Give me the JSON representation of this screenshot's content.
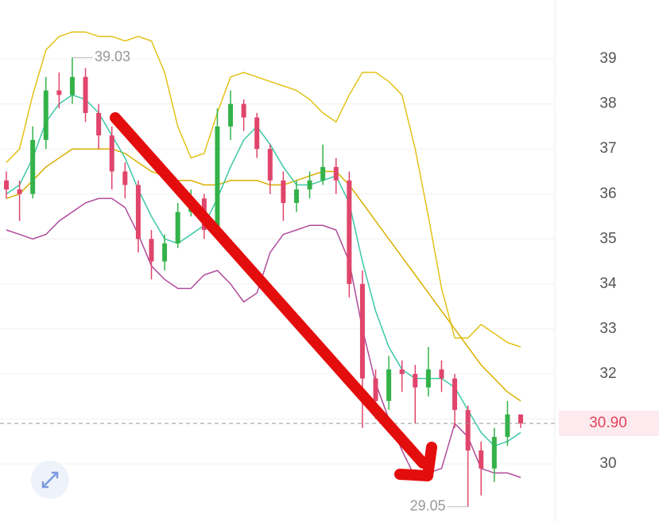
{
  "chart_data": {
    "type": "candlestick",
    "ylim": [
      28.71,
      40.31
    ],
    "yticks": [
      30,
      31,
      32,
      33,
      34,
      35,
      36,
      37,
      38,
      39
    ],
    "grid": true,
    "up_color": "#34b24a",
    "down_color": "#e0456b",
    "candles": {
      "open": [
        36.3,
        36.1,
        36.0,
        37.2,
        38.3,
        38.2,
        38.6,
        37.8,
        37.3,
        36.5,
        36.2,
        35.0,
        34.5,
        34.9,
        35.6,
        35.9,
        35.2,
        37.5,
        38.0,
        37.7,
        37.0,
        36.3,
        35.8,
        36.1,
        36.3,
        36.6,
        36.3,
        34.0,
        31.9,
        31.4,
        32.1,
        32.0,
        31.7,
        32.1,
        31.9,
        31.2,
        30.3,
        29.9,
        30.6,
        31.1
      ],
      "high": [
        36.5,
        36.3,
        37.5,
        38.6,
        38.7,
        39.03,
        38.8,
        38.0,
        37.5,
        36.7,
        36.3,
        35.2,
        35.1,
        35.8,
        36.1,
        36.0,
        37.9,
        38.3,
        38.1,
        37.8,
        37.1,
        36.5,
        36.3,
        36.5,
        37.1,
        36.8,
        36.5,
        34.3,
        32.1,
        32.4,
        32.3,
        32.2,
        32.6,
        32.3,
        32.0,
        31.3,
        30.5,
        30.8,
        31.4,
        31.1
      ],
      "low": [
        35.9,
        35.4,
        35.9,
        37.0,
        37.9,
        38.0,
        37.6,
        37.0,
        36.1,
        35.9,
        34.7,
        34.1,
        34.3,
        34.8,
        35.5,
        35.0,
        35.1,
        37.2,
        37.4,
        36.8,
        36.0,
        35.4,
        35.6,
        35.9,
        36.2,
        36.0,
        33.7,
        30.8,
        31.0,
        31.2,
        31.6,
        30.9,
        31.5,
        31.6,
        30.8,
        29.05,
        29.3,
        29.6,
        30.4,
        30.8
      ],
      "close": [
        36.1,
        36.0,
        37.2,
        38.3,
        38.2,
        38.6,
        37.8,
        37.3,
        36.5,
        36.2,
        35.0,
        34.5,
        34.9,
        35.6,
        35.9,
        35.2,
        37.5,
        38.0,
        37.7,
        37.0,
        36.3,
        35.8,
        36.1,
        36.3,
        36.6,
        36.3,
        34.0,
        31.9,
        31.4,
        32.1,
        32.0,
        31.7,
        32.1,
        31.9,
        31.2,
        30.3,
        29.9,
        30.6,
        31.1,
        30.9
      ]
    },
    "lines": [
      {
        "color": "#e3c21a",
        "values": [
          36.7,
          37.0,
          38.2,
          39.2,
          39.5,
          39.6,
          39.6,
          39.5,
          39.5,
          39.4,
          39.5,
          39.4,
          38.7,
          37.5,
          36.8,
          36.9,
          37.8,
          38.6,
          38.7,
          38.6,
          38.5,
          38.4,
          38.3,
          38.1,
          37.8,
          37.6,
          38.2,
          38.7,
          38.7,
          38.5,
          38.2,
          37.0,
          35.5,
          33.9,
          32.8,
          32.8,
          33.1,
          32.9,
          32.7,
          32.6
        ]
      },
      {
        "color": "#d9b000",
        "values": [
          35.9,
          36.0,
          36.3,
          36.6,
          36.8,
          37.0,
          37.0,
          37.0,
          37.0,
          36.9,
          36.7,
          36.5,
          36.4,
          36.3,
          36.3,
          36.2,
          36.2,
          36.3,
          36.3,
          36.3,
          36.2,
          36.2,
          36.3,
          36.4,
          36.5,
          36.5,
          36.2,
          35.8,
          35.4,
          35.0,
          34.6,
          34.2,
          33.8,
          33.4,
          33.0,
          32.6,
          32.2,
          31.9,
          31.6,
          31.4
        ]
      },
      {
        "color": "#b04a9a",
        "values": [
          35.2,
          35.1,
          35.0,
          35.1,
          35.4,
          35.6,
          35.8,
          35.9,
          35.9,
          35.7,
          35.1,
          34.4,
          34.1,
          33.9,
          33.9,
          34.2,
          34.3,
          34.0,
          33.6,
          33.8,
          34.7,
          35.1,
          35.2,
          35.3,
          35.3,
          35.2,
          34.5,
          33.0,
          31.8,
          31.0,
          30.3,
          29.7,
          29.8,
          29.9,
          30.9,
          30.6,
          29.9,
          29.8,
          29.8,
          29.7
        ]
      },
      {
        "color": "#3cc8a6",
        "values": [
          36.0,
          36.2,
          36.8,
          37.6,
          38.0,
          38.2,
          38.1,
          37.8,
          37.3,
          36.8,
          36.1,
          35.5,
          35.0,
          34.9,
          35.1,
          35.3,
          35.9,
          36.6,
          37.2,
          37.5,
          37.1,
          36.6,
          36.2,
          36.2,
          36.3,
          36.4,
          35.8,
          34.5,
          33.4,
          32.6,
          32.1,
          31.9,
          31.9,
          31.9,
          31.7,
          31.2,
          30.7,
          30.4,
          30.5,
          30.7
        ]
      }
    ],
    "last_price": {
      "value": 30.9,
      "label": "30.90"
    }
  }
}
